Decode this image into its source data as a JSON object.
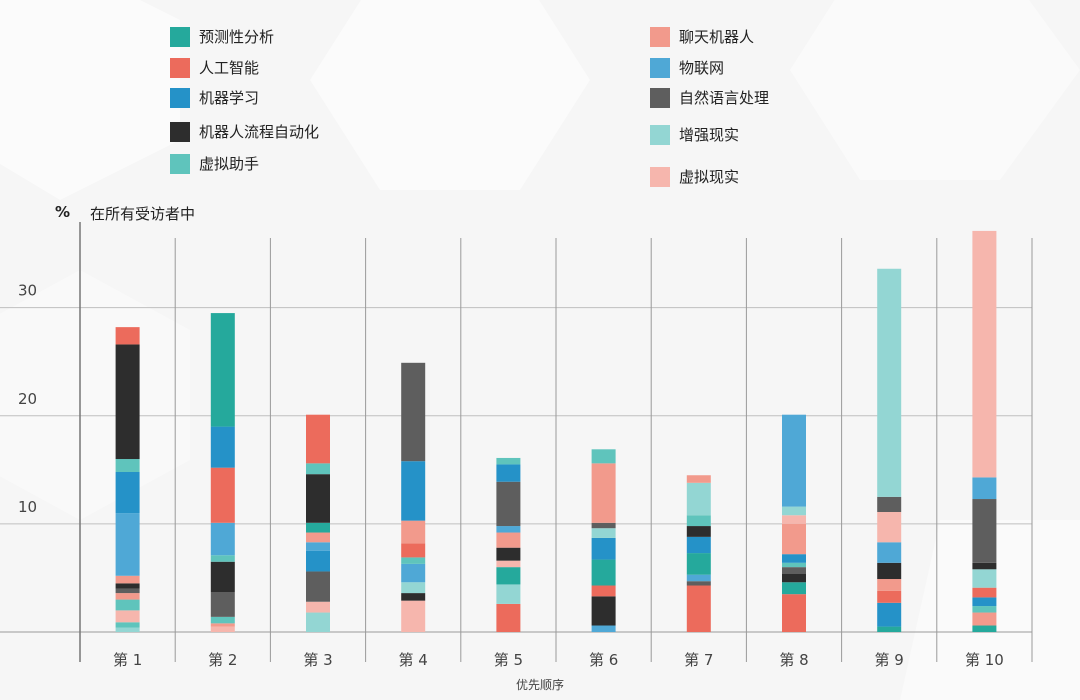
{
  "legend": {
    "left": [
      {
        "key": "predictive",
        "label": "预测性分析"
      },
      {
        "key": "ai",
        "label": "人工智能"
      },
      {
        "key": "ml",
        "label": "机器学习"
      },
      {
        "key": "rpa",
        "label": "机器人流程自动化"
      },
      {
        "key": "va",
        "label": "虚拟助手"
      }
    ],
    "right": [
      {
        "key": "chatbot",
        "label": "聊天机器人"
      },
      {
        "key": "iot",
        "label": "物联网"
      },
      {
        "key": "nlp",
        "label": "自然语言处理"
      },
      {
        "key": "ar",
        "label": "增强现实"
      },
      {
        "key": "vr",
        "label": "虚拟现实"
      }
    ]
  },
  "colors": {
    "predictive": "#25a99c",
    "ai": "#ec6b5c",
    "ml": "#2592c8",
    "rpa": "#2d2d2d",
    "va": "#5fc4bc",
    "chatbot": "#f29a8c",
    "iot": "#4fa8d6",
    "nlp": "#5e5e5e",
    "ar": "#93d6d3",
    "vr": "#f6b6ad"
  },
  "axis": {
    "unit": "%",
    "ylabel": "在所有受访者中",
    "xlabel": "优先顺序"
  },
  "chart_data": {
    "type": "bar",
    "stacked": true,
    "ylim": [
      0,
      37
    ],
    "yticks": [
      10,
      20,
      30
    ],
    "grid": true,
    "legend_position": "top",
    "categories": [
      "第 1",
      "第 2",
      "第 3",
      "第 4",
      "第 5",
      "第 6",
      "第 7",
      "第 8",
      "第 9",
      "第 10"
    ],
    "bars": [
      [
        [
          "ar",
          0.4
        ],
        [
          "va",
          0.5
        ],
        [
          "vr",
          1.1
        ],
        [
          "va",
          1.0
        ],
        [
          "chatbot",
          0.6
        ],
        [
          "nlp",
          0.4
        ],
        [
          "rpa",
          0.5
        ],
        [
          "chatbot",
          0.7
        ],
        [
          "iot",
          5.8
        ],
        [
          "ml",
          3.8
        ],
        [
          "va",
          1.2
        ],
        [
          "rpa",
          10.6
        ],
        [
          "ai",
          1.6
        ]
      ],
      [
        [
          "vr",
          0.5
        ],
        [
          "chatbot",
          0.3
        ],
        [
          "va",
          0.6
        ],
        [
          "nlp",
          2.3
        ],
        [
          "rpa",
          2.8
        ],
        [
          "va",
          0.6
        ],
        [
          "iot",
          3.0
        ],
        [
          "ai",
          5.1
        ],
        [
          "ml",
          3.8
        ],
        [
          "predictive",
          10.5
        ]
      ],
      [
        [
          "ar",
          1.8
        ],
        [
          "vr",
          1.0
        ],
        [
          "nlp",
          2.8
        ],
        [
          "ml",
          1.9
        ],
        [
          "iot",
          0.8
        ],
        [
          "chatbot",
          0.9
        ],
        [
          "predictive",
          0.9
        ],
        [
          "rpa",
          4.5
        ],
        [
          "va",
          1.0
        ],
        [
          "ai",
          4.5
        ]
      ],
      [
        [
          "vr",
          2.9
        ],
        [
          "rpa",
          0.7
        ],
        [
          "ar",
          1.0
        ],
        [
          "iot",
          1.7
        ],
        [
          "va",
          0.6
        ],
        [
          "ai",
          1.3
        ],
        [
          "chatbot",
          2.1
        ],
        [
          "ml",
          5.5
        ],
        [
          "nlp",
          9.1
        ]
      ],
      [
        [
          "ai",
          2.6
        ],
        [
          "ar",
          1.8
        ],
        [
          "predictive",
          1.6
        ],
        [
          "vr",
          0.6
        ],
        [
          "rpa",
          1.2
        ],
        [
          "chatbot",
          1.4
        ],
        [
          "iot",
          0.6
        ],
        [
          "nlp",
          4.1
        ],
        [
          "ml",
          1.6
        ],
        [
          "va",
          0.6
        ]
      ],
      [
        [
          "iot",
          0.6
        ],
        [
          "rpa",
          2.7
        ],
        [
          "ai",
          1.0
        ],
        [
          "predictive",
          2.4
        ],
        [
          "ml",
          2.0
        ],
        [
          "ar",
          0.9
        ],
        [
          "nlp",
          0.5
        ],
        [
          "chatbot",
          5.5
        ],
        [
          "va",
          1.3
        ]
      ],
      [
        [
          "ai",
          4.3
        ],
        [
          "nlp",
          0.4
        ],
        [
          "iot",
          0.6
        ],
        [
          "predictive",
          2.0
        ],
        [
          "ml",
          1.5
        ],
        [
          "rpa",
          1.0
        ],
        [
          "va",
          1.0
        ],
        [
          "ar",
          3.0
        ],
        [
          "chatbot",
          0.7
        ]
      ],
      [
        [
          "ai",
          3.5
        ],
        [
          "predictive",
          1.1
        ],
        [
          "rpa",
          0.8
        ],
        [
          "nlp",
          0.6
        ],
        [
          "va",
          0.4
        ],
        [
          "ml",
          0.8
        ],
        [
          "chatbot",
          2.8
        ],
        [
          "vr",
          0.8
        ],
        [
          "ar",
          0.8
        ],
        [
          "iot",
          8.5
        ]
      ],
      [
        [
          "predictive",
          0.5
        ],
        [
          "ml",
          2.2
        ],
        [
          "ai",
          1.1
        ],
        [
          "chatbot",
          1.1
        ],
        [
          "rpa",
          1.5
        ],
        [
          "iot",
          1.9
        ],
        [
          "vr",
          2.8
        ],
        [
          "nlp",
          1.4
        ],
        [
          "ar",
          21.1
        ]
      ],
      [
        [
          "predictive",
          0.6
        ],
        [
          "chatbot",
          1.2
        ],
        [
          "va",
          0.6
        ],
        [
          "ml",
          0.8
        ],
        [
          "ai",
          0.9
        ],
        [
          "ar",
          1.7
        ],
        [
          "rpa",
          0.6
        ],
        [
          "nlp",
          5.9
        ],
        [
          "iot",
          2.0
        ],
        [
          "vr",
          22.8
        ]
      ]
    ]
  }
}
